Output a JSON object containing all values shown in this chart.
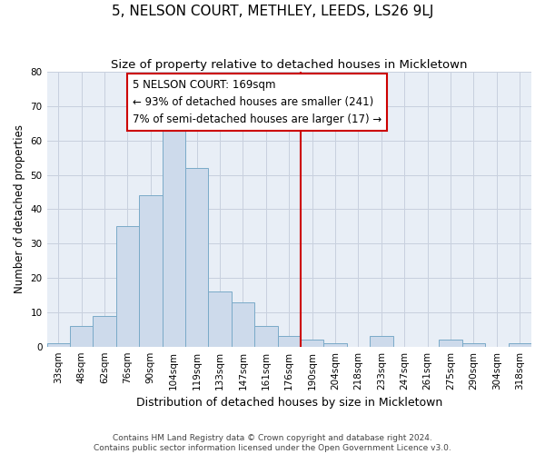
{
  "title": "5, NELSON COURT, METHLEY, LEEDS, LS26 9LJ",
  "subtitle": "Size of property relative to detached houses in Mickletown",
  "xlabel": "Distribution of detached houses by size in Mickletown",
  "ylabel": "Number of detached properties",
  "categories": [
    "33sqm",
    "48sqm",
    "62sqm",
    "76sqm",
    "90sqm",
    "104sqm",
    "119sqm",
    "133sqm",
    "147sqm",
    "161sqm",
    "176sqm",
    "190sqm",
    "204sqm",
    "218sqm",
    "233sqm",
    "247sqm",
    "261sqm",
    "275sqm",
    "290sqm",
    "304sqm",
    "318sqm"
  ],
  "values": [
    1,
    6,
    9,
    35,
    44,
    63,
    52,
    16,
    13,
    6,
    3,
    2,
    1,
    0,
    3,
    0,
    0,
    2,
    1,
    0,
    1
  ],
  "bar_color": "#cddaeb",
  "bar_edge_color": "#7aaac8",
  "property_line_x": 10.5,
  "annotation_text": "5 NELSON COURT: 169sqm\n← 93% of detached houses are smaller (241)\n7% of semi-detached houses are larger (17) →",
  "annotation_box_color": "#ffffff",
  "annotation_box_edge_color": "#cc0000",
  "vline_color": "#cc0000",
  "ylim": [
    0,
    80
  ],
  "yticks": [
    0,
    10,
    20,
    30,
    40,
    50,
    60,
    70,
    80
  ],
  "grid_color": "#c8d0de",
  "background_color": "#e8eef6",
  "footer_line1": "Contains HM Land Registry data © Crown copyright and database right 2024.",
  "footer_line2": "Contains public sector information licensed under the Open Government Licence v3.0.",
  "title_fontsize": 11,
  "subtitle_fontsize": 9.5,
  "xlabel_fontsize": 9,
  "ylabel_fontsize": 8.5,
  "tick_fontsize": 7.5,
  "annot_fontsize": 8.5,
  "footer_fontsize": 6.5
}
